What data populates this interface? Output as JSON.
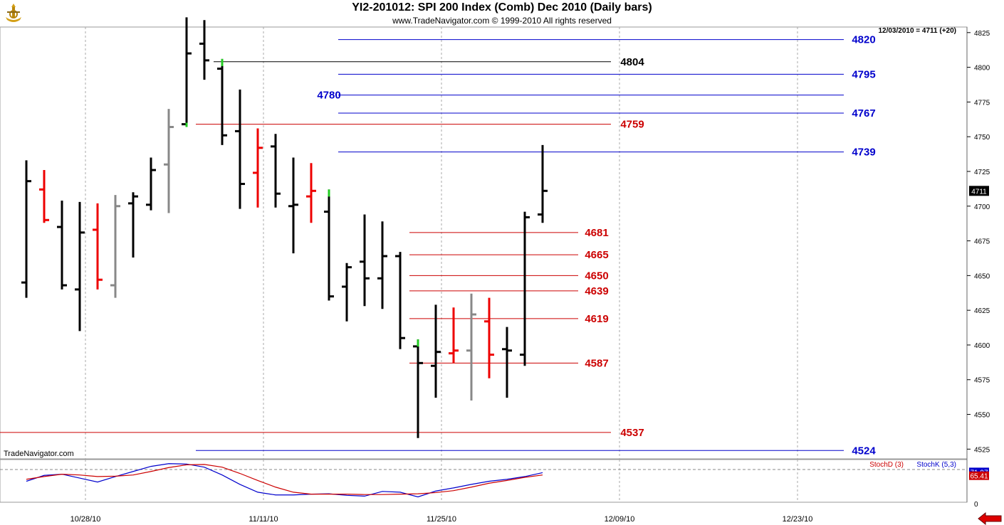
{
  "header": {
    "title": "YI2-201012:  SPI 200 Index (Comb) Dec 2010  (Daily bars)",
    "subtitle": "www.TradeNavigator.com © 1999-2010 All rights reserved",
    "logo_icon": "trade-navigator-logo-icon"
  },
  "readout": "12/03/2010 = 4711 (+20)",
  "watermark": "TradeNavigator.com",
  "colors": {
    "up": "#000000",
    "down": "#ee0000",
    "neutral": "#888888",
    "reversal": "#22cc22",
    "blue_level": "#0000cc",
    "red_level": "#cc0000",
    "black_level": "#000000"
  },
  "chart_data": {
    "type": "ohlc",
    "x_ticks": [
      "10/28/10",
      "11/11/10",
      "11/25/10",
      "12/09/10",
      "12/23/10"
    ],
    "y_ticks": [
      4525,
      4550,
      4575,
      4600,
      4625,
      4650,
      4675,
      4700,
      4725,
      4750,
      4775,
      4800,
      4825
    ],
    "ylim": [
      4518,
      4829
    ],
    "current_price": 4711,
    "bars": [
      {
        "o": 4645,
        "h": 4733,
        "l": 4634,
        "c": 4718,
        "color": "black"
      },
      {
        "o": 4712,
        "h": 4726,
        "l": 4688,
        "c": 4690,
        "color": "red"
      },
      {
        "o": 4685,
        "h": 4704,
        "l": 4640,
        "c": 4643,
        "color": "black"
      },
      {
        "o": 4640,
        "h": 4703,
        "l": 4610,
        "c": 4681,
        "color": "black"
      },
      {
        "o": 4683,
        "h": 4702,
        "l": 4640,
        "c": 4647,
        "color": "red"
      },
      {
        "o": 4643,
        "h": 4708,
        "l": 4634,
        "c": 4700,
        "color": "gray"
      },
      {
        "o": 4702,
        "h": 4710,
        "l": 4663,
        "c": 4707,
        "color": "black"
      },
      {
        "o": 4701,
        "h": 4735,
        "l": 4697,
        "c": 4726,
        "color": "black"
      },
      {
        "o": 4730,
        "h": 4770,
        "l": 4695,
        "c": 4757,
        "color": "gray"
      },
      {
        "o": 4759,
        "h": 4836,
        "l": 4757,
        "c": 4810,
        "color": "black"
      },
      {
        "o": 4817,
        "h": 4834,
        "l": 4791,
        "c": 4805,
        "color": "black"
      },
      {
        "o": 4799,
        "h": 4806,
        "l": 4744,
        "c": 4751,
        "color": "black"
      },
      {
        "o": 4754,
        "h": 4784,
        "l": 4698,
        "c": 4716,
        "color": "black"
      },
      {
        "o": 4724,
        "h": 4756,
        "l": 4699,
        "c": 4742,
        "color": "red"
      },
      {
        "o": 4743,
        "h": 4752,
        "l": 4699,
        "c": 4709,
        "color": "black"
      },
      {
        "o": 4700,
        "h": 4735,
        "l": 4666,
        "c": 4701,
        "color": "black"
      },
      {
        "o": 4707,
        "h": 4731,
        "l": 4688,
        "c": 4711,
        "color": "red"
      },
      {
        "o": 4696,
        "h": 4712,
        "l": 4632,
        "c": 4635,
        "color": "black"
      },
      {
        "o": 4642,
        "h": 4659,
        "l": 4617,
        "c": 4656,
        "color": "black"
      },
      {
        "o": 4660,
        "h": 4694,
        "l": 4628,
        "c": 4648,
        "color": "black"
      },
      {
        "o": 4648,
        "h": 4689,
        "l": 4626,
        "c": 4664,
        "color": "black"
      },
      {
        "o": 4664,
        "h": 4667,
        "l": 4597,
        "c": 4605,
        "color": "black"
      },
      {
        "o": 4599,
        "h": 4604,
        "l": 4533,
        "c": 4587,
        "color": "black"
      },
      {
        "o": 4585,
        "h": 4629,
        "l": 4562,
        "c": 4595,
        "color": "black"
      },
      {
        "o": 4594,
        "h": 4627,
        "l": 4587,
        "c": 4596,
        "color": "red"
      },
      {
        "o": 4596,
        "h": 4637,
        "l": 4560,
        "c": 4622,
        "color": "gray"
      },
      {
        "o": 4617,
        "h": 4634,
        "l": 4576,
        "c": 4593,
        "color": "red"
      },
      {
        "o": 4597,
        "h": 4613,
        "l": 4562,
        "c": 4596,
        "color": "black"
      },
      {
        "o": 4593,
        "h": 4696,
        "l": 4585,
        "c": 4692,
        "color": "black"
      },
      {
        "o": 4694,
        "h": 4744,
        "l": 4688,
        "c": 4711,
        "color": "black"
      }
    ],
    "levels": [
      {
        "value": 4820,
        "label": "4820",
        "color": "blue"
      },
      {
        "value": 4804,
        "label": "4804",
        "color": "black"
      },
      {
        "value": 4795,
        "label": "4795",
        "color": "blue"
      },
      {
        "value": 4780,
        "label": "4780",
        "color": "blue"
      },
      {
        "value": 4767,
        "label": "4767",
        "color": "blue"
      },
      {
        "value": 4759,
        "label": "4759",
        "color": "red"
      },
      {
        "value": 4739,
        "label": "4739",
        "color": "blue"
      },
      {
        "value": 4681,
        "label": "4681",
        "color": "red"
      },
      {
        "value": 4665,
        "label": "4665",
        "color": "red"
      },
      {
        "value": 4650,
        "label": "4650",
        "color": "red"
      },
      {
        "value": 4639,
        "label": "4639",
        "color": "red"
      },
      {
        "value": 4619,
        "label": "4619",
        "color": "red"
      },
      {
        "value": 4587,
        "label": "4587",
        "color": "red"
      },
      {
        "value": 4537,
        "label": "4537",
        "color": "red"
      },
      {
        "value": 4524,
        "label": "4524",
        "color": "blue"
      }
    ],
    "stochastic": {
      "ylim": [
        0,
        100
      ],
      "y_ticks": [
        0
      ],
      "legend": [
        "StochD (3)",
        "StochK (5,3)"
      ],
      "value_labels": [
        "71.97",
        "65.41"
      ],
      "stoch_d": [
        55,
        62,
        68,
        66,
        62,
        63,
        66,
        75,
        85,
        92,
        93,
        86,
        70,
        52,
        35,
        22,
        17,
        17,
        17,
        16,
        16,
        17,
        18,
        21,
        26,
        35,
        45,
        52,
        60,
        66
      ],
      "stoch_k": [
        50,
        65,
        68,
        58,
        48,
        62,
        75,
        88,
        95,
        94,
        86,
        66,
        42,
        22,
        15,
        15,
        17,
        18,
        14,
        12,
        24,
        22,
        10,
        25,
        33,
        42,
        50,
        55,
        62,
        72
      ]
    }
  }
}
